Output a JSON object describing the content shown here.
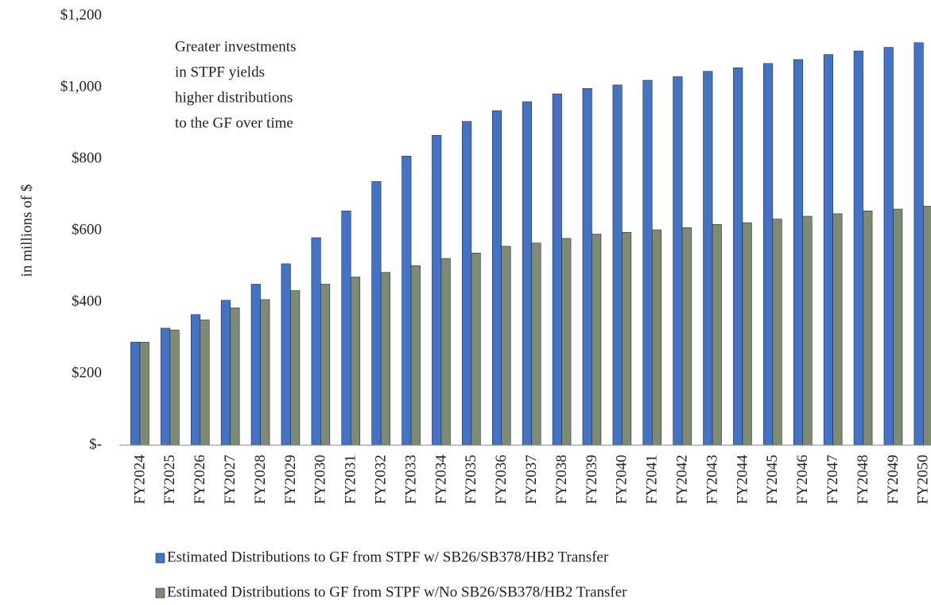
{
  "chart_data": {
    "type": "bar",
    "annotation": [
      "Greater investments",
      "in STPF yields",
      "higher distributions",
      "to the GF over time"
    ],
    "y_label": "in millions of $",
    "categories": [
      "FY2024",
      "FY2025",
      "FY2026",
      "FY2027",
      "FY2028",
      "FY2029",
      "FY2030",
      "FY2031",
      "FY2032",
      "FY2033",
      "FY2034",
      "FY2035",
      "FY2036",
      "FY2037",
      "FY2038",
      "FY2039",
      "FY2040",
      "FY2041",
      "FY2042",
      "FY2043",
      "FY2044",
      "FY2045",
      "FY2046",
      "FY2047",
      "FY2048",
      "FY2049",
      "FY2050"
    ],
    "series": [
      {
        "name": "Estimated Distributions to GF from STPF w/ SB26/SB378/HB2 Transfer",
        "color": "#4472c4",
        "values": [
          288,
          327,
          365,
          405,
          450,
          507,
          580,
          655,
          737,
          808,
          866,
          905,
          935,
          960,
          982,
          997,
          1007,
          1020,
          1030,
          1045,
          1055,
          1067,
          1078,
          1092,
          1102,
          1112,
          1125
        ]
      },
      {
        "name": "Estimated Distributions to GF from STPF w/No SB26/SB378/HB2 Transfer",
        "color": "#7f8a72",
        "values": [
          288,
          322,
          350,
          384,
          407,
          432,
          450,
          470,
          483,
          502,
          522,
          537,
          556,
          565,
          578,
          590,
          595,
          602,
          608,
          617,
          622,
          632,
          640,
          647,
          655,
          660,
          668
        ]
      }
    ],
    "ylim": [
      0,
      1200
    ],
    "yticks": [
      {
        "value": 0,
        "label": "$-"
      },
      {
        "value": 200,
        "label": "$200"
      },
      {
        "value": 400,
        "label": "$400"
      },
      {
        "value": 600,
        "label": "$600"
      },
      {
        "value": 800,
        "label": "$800"
      },
      {
        "value": 1000,
        "label": "$1,000"
      },
      {
        "value": 1200,
        "label": "$1,200"
      }
    ],
    "grid": false,
    "legend": "bottom"
  }
}
